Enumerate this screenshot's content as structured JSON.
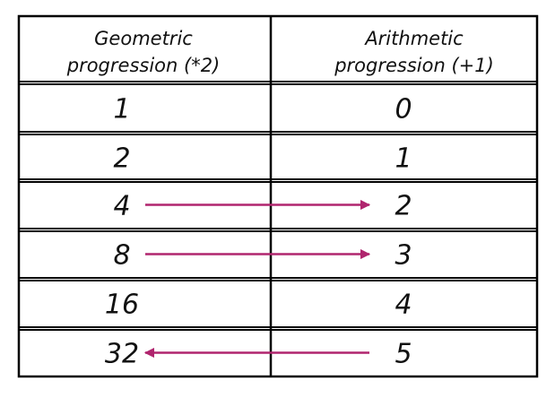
{
  "table": {
    "headers": [
      {
        "lines": [
          "Geometric",
          "progression (*2)"
        ]
      },
      {
        "lines": [
          "Arithmetic",
          "progression (+1)"
        ]
      }
    ],
    "rows": [
      {
        "geometric": "1",
        "arithmetic": "0"
      },
      {
        "geometric": "2",
        "arithmetic": "1"
      },
      {
        "geometric": "4",
        "arithmetic": "2"
      },
      {
        "geometric": "8",
        "arithmetic": "3"
      },
      {
        "geometric": "16",
        "arithmetic": "4"
      },
      {
        "geometric": "32",
        "arithmetic": "5"
      }
    ]
  },
  "arrows": [
    {
      "row": 2,
      "direction": "right"
    },
    {
      "row": 3,
      "direction": "right"
    },
    {
      "row": 5,
      "direction": "left"
    }
  ],
  "colors": {
    "border": "#000000",
    "text": "#111111",
    "arrow": "#b0256e"
  }
}
